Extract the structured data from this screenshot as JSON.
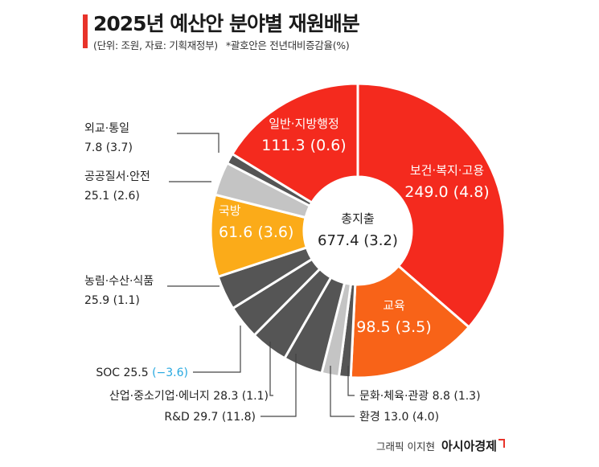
{
  "header": {
    "title": "2025년 예산안 분야별 재원배분",
    "unit_note": "(단위: 조원, 자료: 기획재정부)",
    "paren_note": "*괄호안은 전년대비증감율(%)"
  },
  "credit": {
    "author": "그래픽 이지현",
    "brand": "아시아경제"
  },
  "colors": {
    "red": "#f42a1e",
    "orange": "#f86318",
    "yellow": "#fbab19",
    "gray": "#555555",
    "light_gray": "#c4c4c4",
    "negative": "#26a8e0"
  },
  "chart_data": {
    "type": "pie",
    "variant": "donut",
    "title": "2025년 예산안 분야별 재원배분",
    "unit": "조원",
    "center": {
      "label": "총지출",
      "value": "677.4 (3.2)"
    },
    "slices": [
      {
        "name": "보건·복지·고용",
        "value": 249.0,
        "change": 4.8,
        "text": "249.0 (4.8)",
        "color": "#f42a1e",
        "label_pos": "inside"
      },
      {
        "name": "교육",
        "value": 98.5,
        "change": 3.5,
        "text": "98.5 (3.5)",
        "color": "#f86318",
        "label_pos": "inside"
      },
      {
        "name": "문화·체육·관광",
        "value": 8.8,
        "change": 1.3,
        "text": "8.8 (1.3)",
        "color": "#555555",
        "label_pos": "outside"
      },
      {
        "name": "환경",
        "value": 13.0,
        "change": 4.0,
        "text": "13.0 (4.0)",
        "color": "#c4c4c4",
        "label_pos": "outside"
      },
      {
        "name": "R&D",
        "value": 29.7,
        "change": 11.8,
        "text": "29.7 (11.8)",
        "color": "#555555",
        "label_pos": "outside"
      },
      {
        "name": "산업·중소기업·에너지",
        "value": 28.3,
        "change": 1.1,
        "text": "28.3 (1.1)",
        "color": "#555555",
        "label_pos": "outside"
      },
      {
        "name": "SOC",
        "value": 25.5,
        "change": -3.6,
        "text": "25.5",
        "change_text": "(−3.6)",
        "color": "#555555",
        "label_pos": "outside"
      },
      {
        "name": "농림·수산·식품",
        "value": 25.9,
        "change": 1.1,
        "text": "25.9 (1.1)",
        "color": "#555555",
        "label_pos": "outside"
      },
      {
        "name": "국방",
        "value": 61.6,
        "change": 3.6,
        "text": "61.6 (3.6)",
        "color": "#fbab19",
        "label_pos": "inside"
      },
      {
        "name": "공공질서·안전",
        "value": 25.1,
        "change": 2.6,
        "text": "25.1 (2.6)",
        "color": "#c4c4c4",
        "label_pos": "outside"
      },
      {
        "name": "외교·통일",
        "value": 7.8,
        "change": 3.7,
        "text": "7.8 (3.7)",
        "color": "#555555",
        "label_pos": "outside"
      },
      {
        "name": "일반·지방행정",
        "value": 111.3,
        "change": 0.6,
        "text": "111.3 (0.6)",
        "color": "#f42a1e",
        "label_pos": "inside"
      }
    ]
  }
}
